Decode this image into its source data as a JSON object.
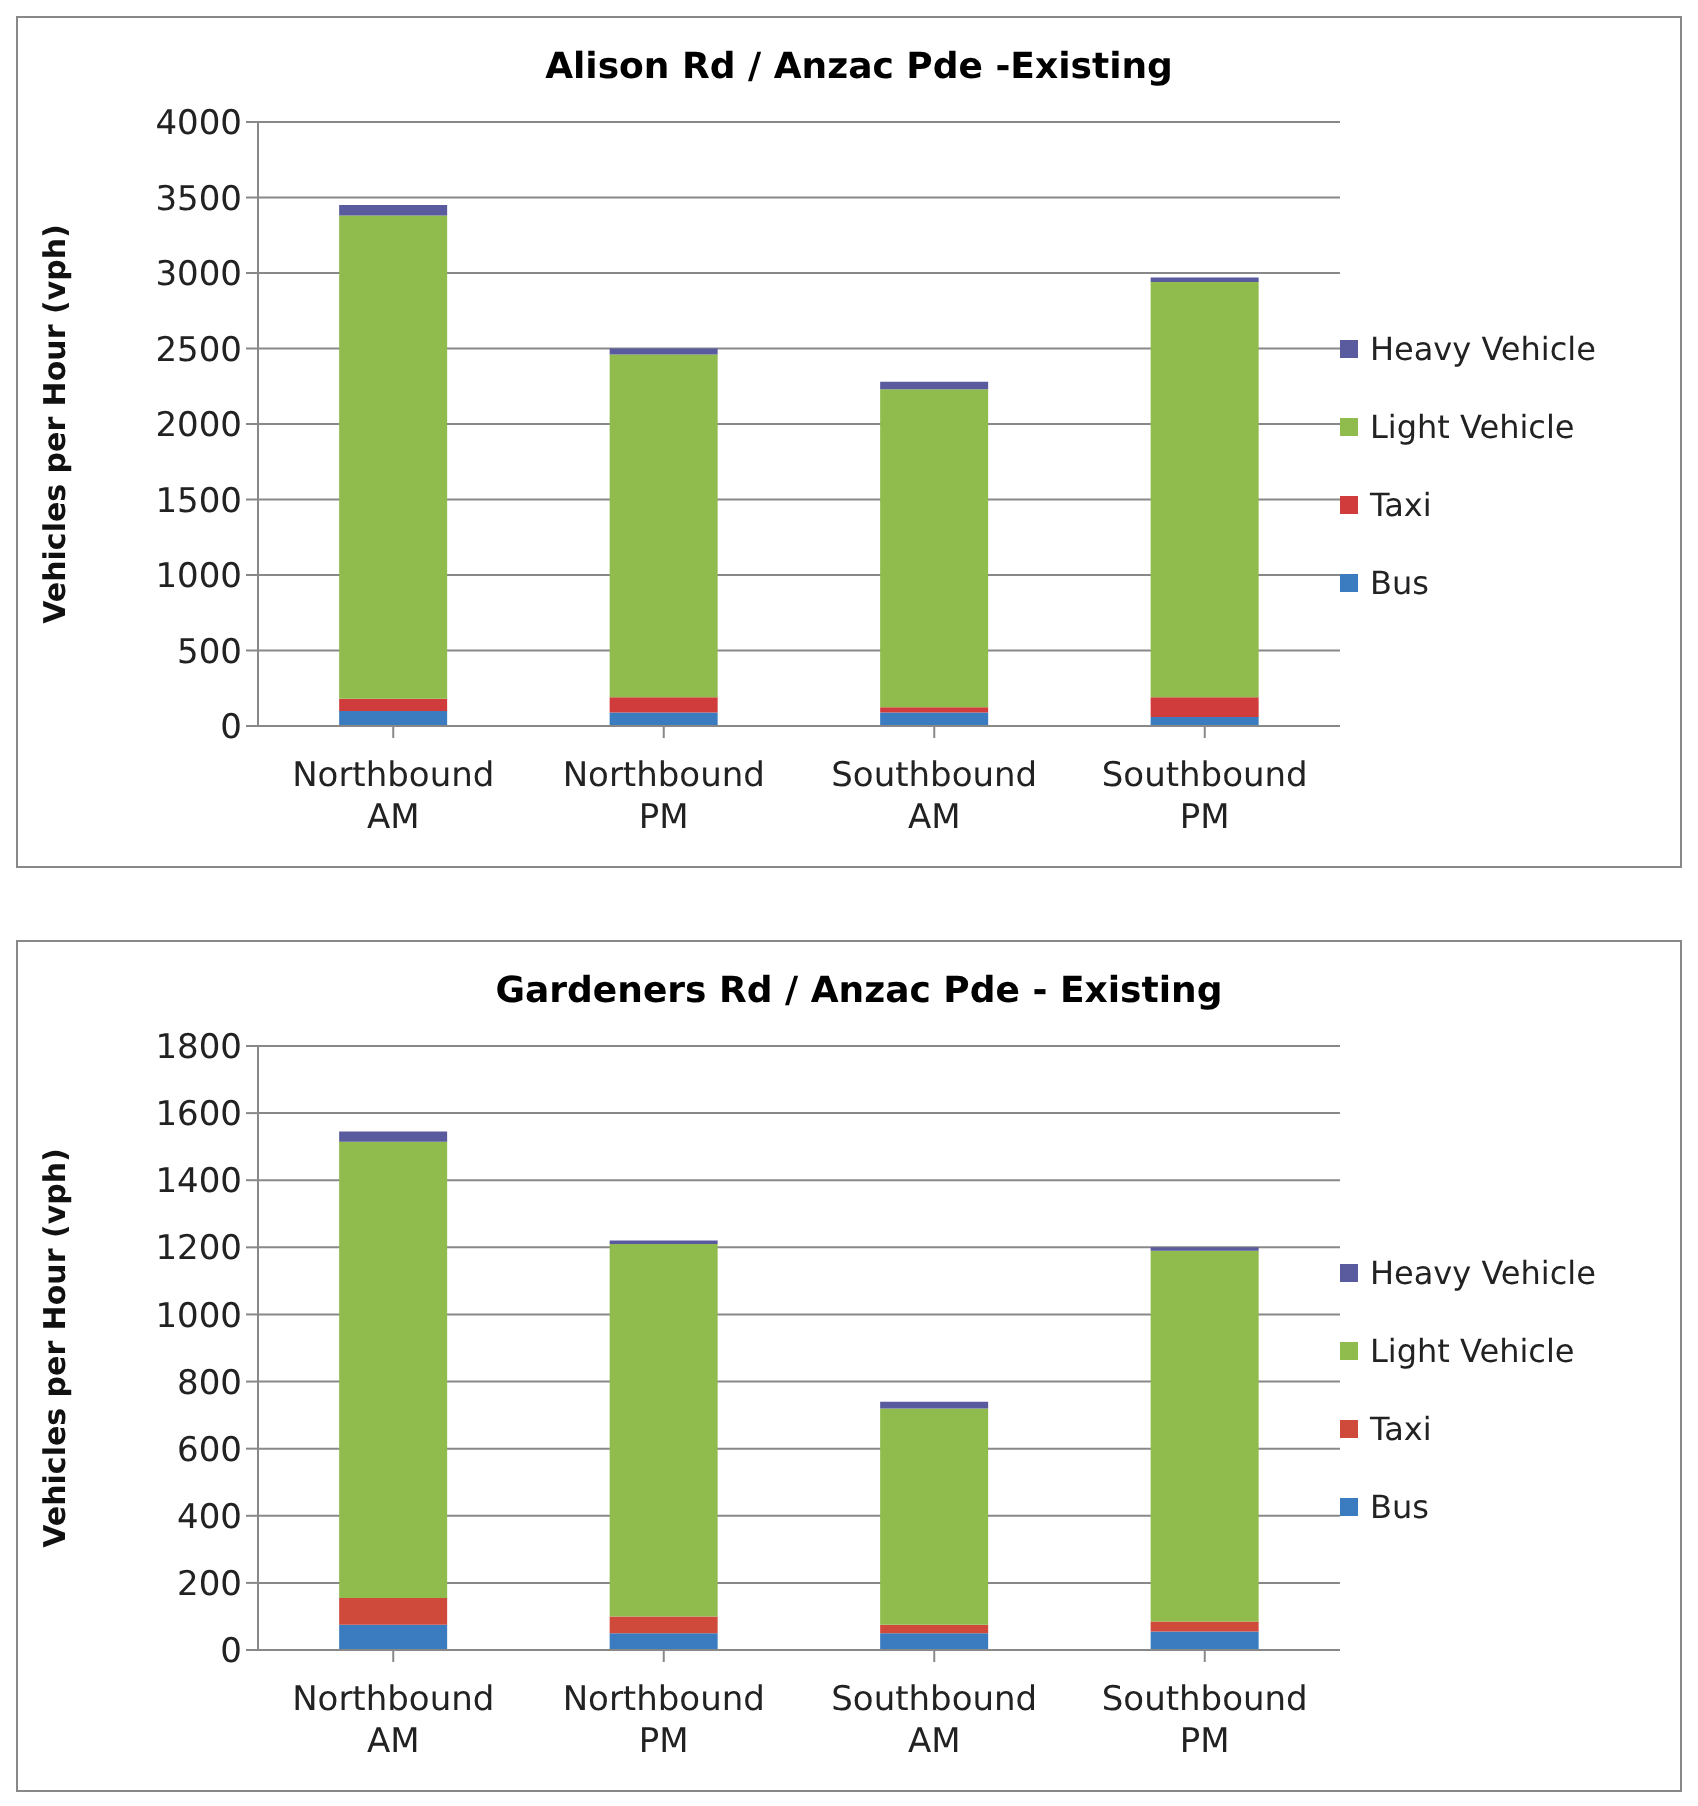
{
  "chart_data": [
    {
      "type": "bar",
      "title": "Alison Rd / Anzac Pde -Existing",
      "ylabel": "Vehicles per Hour (vph)",
      "categories": [
        "Northbound AM",
        "Northbound PM",
        "Southbound AM",
        "Southbound PM"
      ],
      "stacked": true,
      "grid": "y",
      "legend": "right",
      "ylim": [
        0,
        4000
      ],
      "yticks": [
        0,
        500,
        1000,
        1500,
        2000,
        2500,
        3000,
        3500,
        4000
      ],
      "series": [
        {
          "name": "Bus",
          "color": "#3b7cc0",
          "values": [
            100,
            90,
            90,
            60
          ]
        },
        {
          "name": "Taxi",
          "color": "#d03c3c",
          "values": [
            80,
            100,
            35,
            130
          ]
        },
        {
          "name": "Light Vehicle",
          "color": "#8fbc4c",
          "values": [
            3200,
            2270,
            2105,
            2750
          ]
        },
        {
          "name": "Heavy Vehicle",
          "color": "#5a5a9e",
          "values": [
            70,
            40,
            50,
            30
          ]
        }
      ]
    },
    {
      "type": "bar",
      "title": "Gardeners Rd / Anzac Pde -  Existing",
      "ylabel": "Vehicles per Hour (vph)",
      "categories": [
        "Northbound AM",
        "Northbound PM",
        "Southbound AM",
        "Southbound PM"
      ],
      "stacked": true,
      "grid": "y",
      "legend": "right",
      "ylim": [
        0,
        1800
      ],
      "yticks": [
        0,
        200,
        400,
        600,
        800,
        1000,
        1200,
        1400,
        1600,
        1800
      ],
      "series": [
        {
          "name": "Bus",
          "color": "#3b7cc0",
          "values": [
            75,
            50,
            50,
            55
          ]
        },
        {
          "name": "Taxi",
          "color": "#d04a3c",
          "values": [
            80,
            50,
            25,
            30
          ]
        },
        {
          "name": "Light Vehicle",
          "color": "#8fbc4c",
          "values": [
            1360,
            1110,
            645,
            1105
          ]
        },
        {
          "name": "Heavy Vehicle",
          "color": "#5a5a9e",
          "values": [
            30,
            10,
            20,
            10
          ]
        }
      ]
    }
  ]
}
